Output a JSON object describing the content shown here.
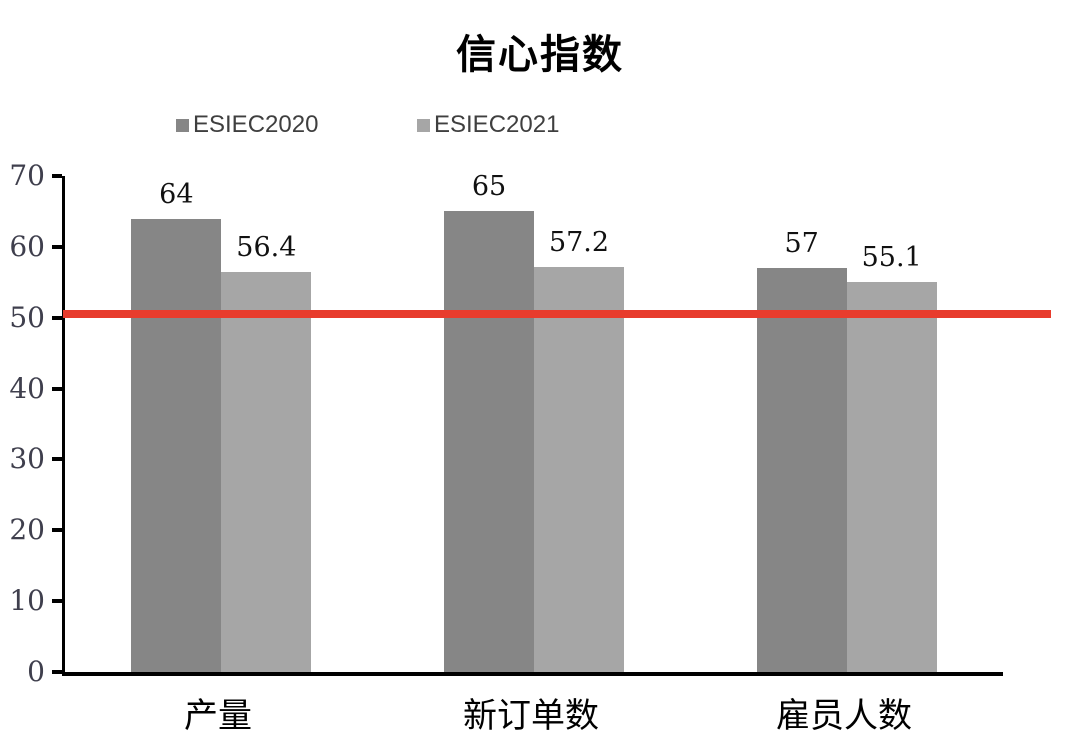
{
  "chart_data": {
    "type": "bar",
    "title": "信心指数",
    "categories": [
      "产量",
      "新订单数",
      "雇员人数"
    ],
    "series": [
      {
        "name": "ESIEC2020",
        "color": "#868686",
        "values": [
          64,
          65,
          57
        ]
      },
      {
        "name": "ESIEC2021",
        "color": "#A6A6A6",
        "values": [
          56.4,
          57.2,
          55.1
        ]
      }
    ],
    "xlabel": "",
    "ylabel": "",
    "ylim": [
      0,
      70
    ],
    "ytick_step": 10,
    "grid": false,
    "legend_position": "top",
    "threshold_line": {
      "value": 50.5,
      "color": "#E83C2D",
      "thickness_px": 8
    }
  }
}
